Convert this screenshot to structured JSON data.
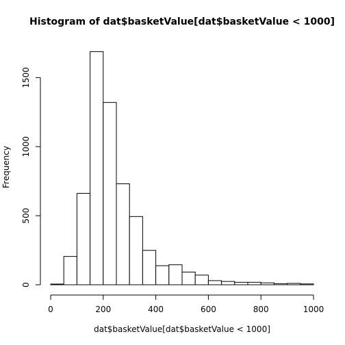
{
  "chart_data": {
    "type": "bar",
    "title": "Histogram of dat$basketValue[dat$basketValue < 1000]",
    "xlabel": "dat$basketValue[dat$basketValue < 1000]",
    "ylabel": "Frequency",
    "bin_width": 50,
    "bins": [
      {
        "start": 0,
        "end": 50,
        "count": 5
      },
      {
        "start": 50,
        "end": 100,
        "count": 205
      },
      {
        "start": 100,
        "end": 150,
        "count": 662
      },
      {
        "start": 150,
        "end": 200,
        "count": 1688
      },
      {
        "start": 200,
        "end": 250,
        "count": 1320
      },
      {
        "start": 250,
        "end": 300,
        "count": 731
      },
      {
        "start": 300,
        "end": 350,
        "count": 494
      },
      {
        "start": 350,
        "end": 400,
        "count": 249
      },
      {
        "start": 400,
        "end": 450,
        "count": 138
      },
      {
        "start": 450,
        "end": 500,
        "count": 145
      },
      {
        "start": 500,
        "end": 550,
        "count": 92
      },
      {
        "start": 550,
        "end": 600,
        "count": 70
      },
      {
        "start": 600,
        "end": 650,
        "count": 30
      },
      {
        "start": 650,
        "end": 700,
        "count": 24
      },
      {
        "start": 700,
        "end": 750,
        "count": 18
      },
      {
        "start": 750,
        "end": 800,
        "count": 18
      },
      {
        "start": 800,
        "end": 850,
        "count": 14
      },
      {
        "start": 850,
        "end": 900,
        "count": 8
      },
      {
        "start": 900,
        "end": 950,
        "count": 10
      },
      {
        "start": 950,
        "end": 1000,
        "count": 6
      }
    ],
    "xlim": [
      0,
      1000
    ],
    "ylim": [
      0,
      1700
    ],
    "x_ticks": [
      0,
      200,
      400,
      600,
      800,
      1000
    ],
    "x_tick_labels": [
      "0",
      "200",
      "400",
      "600",
      "800",
      "1000"
    ],
    "y_ticks": [
      0,
      500,
      1000,
      1500
    ],
    "y_tick_labels": [
      "0",
      "500",
      "1000",
      "1500"
    ],
    "grid": false,
    "legend": "none",
    "bar_fill": "#ffffff",
    "bar_stroke": "#000000"
  }
}
